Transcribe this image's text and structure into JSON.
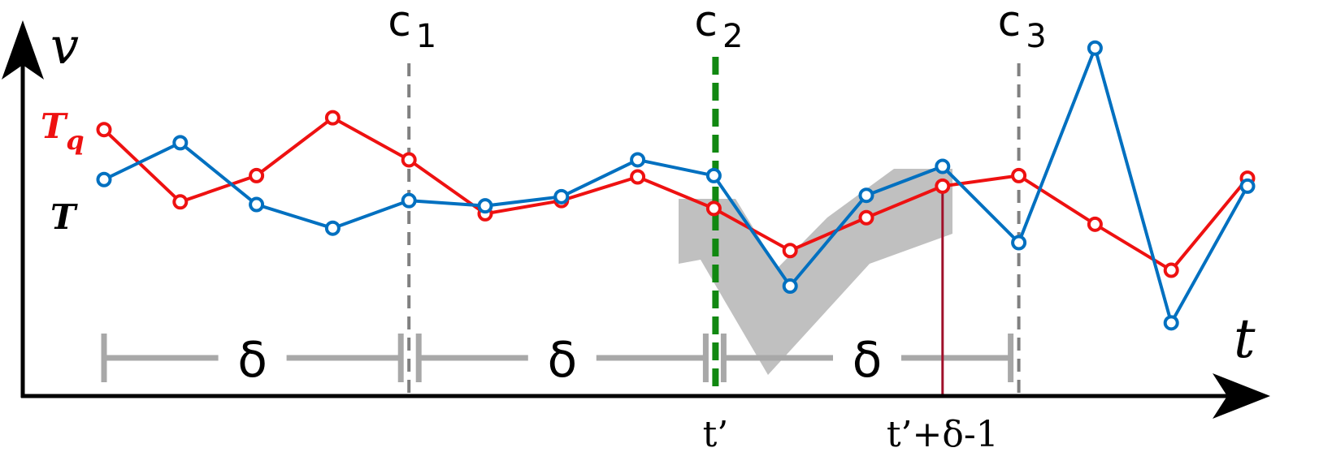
{
  "axes": {
    "y_label": "v",
    "x_label": "t",
    "color": "#000000"
  },
  "series": [
    {
      "label": "T",
      "color": "#0070c0",
      "points": [
        [
          0,
          27
        ],
        [
          1,
          55
        ],
        [
          2,
          8
        ],
        [
          3,
          -10
        ],
        [
          4,
          11
        ],
        [
          5,
          7
        ],
        [
          6,
          14
        ],
        [
          7,
          42
        ],
        [
          8,
          30
        ],
        [
          9,
          -54
        ],
        [
          10,
          15
        ],
        [
          11,
          37
        ],
        [
          12,
          -21
        ],
        [
          13,
          127
        ],
        [
          14,
          -82
        ],
        [
          15,
          22
        ]
      ]
    },
    {
      "label": "T",
      "label_subscript": "q",
      "color": "#ee1111",
      "points": [
        [
          0,
          65
        ],
        [
          1,
          10
        ],
        [
          2,
          30
        ],
        [
          3,
          74
        ],
        [
          4,
          42
        ],
        [
          5,
          1
        ],
        [
          6,
          11
        ],
        [
          7,
          29
        ],
        [
          8,
          5
        ],
        [
          9,
          -27
        ],
        [
          10,
          -2
        ],
        [
          11,
          22
        ],
        [
          12,
          30
        ],
        [
          13,
          -7
        ],
        [
          14,
          -42
        ],
        [
          15,
          28
        ]
      ]
    }
  ],
  "cutpoints": [
    {
      "label": "c",
      "subscript": "1",
      "t": 4
    },
    {
      "label": "c",
      "subscript": "2",
      "t": 8
    },
    {
      "label": "c",
      "subscript": "3",
      "t": 12
    }
  ],
  "markers": [
    {
      "label": "t’",
      "t": 8
    },
    {
      "label": "t’+δ-1",
      "t": 11
    }
  ],
  "windows": [
    {
      "label": "δ",
      "from": 0,
      "to": 4
    },
    {
      "label": "δ",
      "from": 4,
      "to": 8
    },
    {
      "label": "δ",
      "from": 8,
      "to": 12
    }
  ],
  "colors": {
    "cutpoint": "#808080",
    "highlight_cutpoint": "#118811",
    "marker_line": "#a0102a",
    "window_bar": "#a8a8a8",
    "match_region": "#c0c0c0"
  }
}
